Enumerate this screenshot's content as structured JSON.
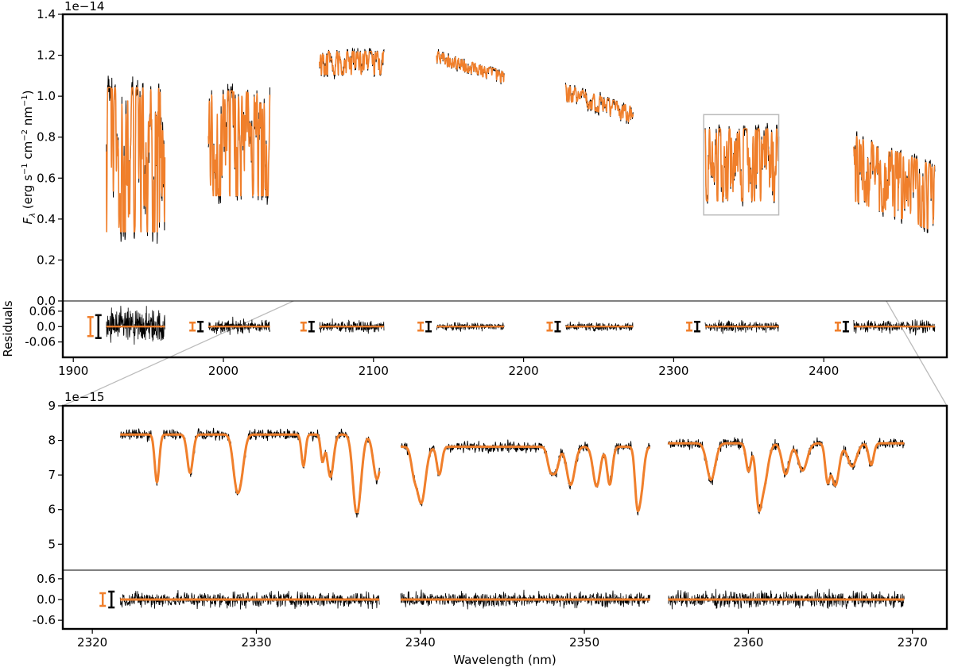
{
  "colors": {
    "model": "#f07f2b",
    "data": "#000000",
    "inset_box": "#bbbbbb",
    "background": "#ffffff"
  },
  "chart_data": [
    {
      "type": "line",
      "panel": "top-spectrum",
      "ylabel_parts": {
        "main": "F",
        "sub": "λ",
        "unit": " (erg s",
        "e1": "−1",
        "u2": " cm",
        "e2": "−2",
        "u3": " nm",
        "e3": "−1",
        "close": ")"
      },
      "offset_text": "1e−14",
      "xlim": [
        1893,
        2482
      ],
      "ylim": [
        0.0,
        1.4
      ],
      "yticks": [
        "0.0",
        "0.2",
        "0.4",
        "0.6",
        "0.8",
        "1.0",
        "1.2",
        "1.4"
      ],
      "grid": false,
      "series": [
        {
          "values": [
            {
              "x_range": [
                1922,
                1961
              ],
              "level": 0.8,
              "amplitude": 0.44
            },
            {
              "x_range": [
                1990,
                2031
              ],
              "level": 0.85,
              "amplitude": 0.32
            },
            {
              "x_range": [
                2064,
                2107
              ],
              "level": 1.18,
              "amplitude": 0.07
            },
            {
              "x_range": [
                2142,
                2187
              ],
              "level_start": 1.2,
              "level_end": 1.1,
              "amplitude": 0.035
            },
            {
              "x_range": [
                2228,
                2273
              ],
              "level_start": 1.03,
              "level_end": 0.92,
              "amplitude": 0.05
            },
            {
              "x_range": [
                2321,
                2370
              ],
              "level": 0.72,
              "amplitude": 0.22
            },
            {
              "x_range": [
                2420,
                2474
              ],
              "level_start": 0.7,
              "level_end": 0.55,
              "amplitude": 0.2
            }
          ]
        }
      ],
      "inset_indicator": {
        "x_range": [
          2320,
          2370
        ],
        "y_range": [
          0.42,
          0.91
        ]
      }
    },
    {
      "type": "line",
      "panel": "top-residuals",
      "ylabel": "Residuals",
      "ylim": [
        -0.12,
        0.1
      ],
      "yticks": [
        "0.06",
        "0.0",
        "-0.06"
      ],
      "xticks": [
        "1900",
        "2000",
        "2100",
        "2200",
        "2300",
        "2400"
      ],
      "x_tick_values": [
        1900,
        2000,
        2100,
        2200,
        2300,
        2400
      ],
      "series": [
        {
          "values": [
            {
              "x_range": [
                1922,
                1961
              ],
              "scatter": 0.12
            },
            {
              "x_range": [
                1990,
                2031
              ],
              "scatter": 0.045
            },
            {
              "x_range": [
                2064,
                2107
              ],
              "scatter": 0.04
            },
            {
              "x_range": [
                2142,
                2187
              ],
              "scatter": 0.025
            },
            {
              "x_range": [
                2228,
                2273
              ],
              "scatter": 0.03
            },
            {
              "x_range": [
                2321,
                2370
              ],
              "scatter": 0.04
            },
            {
              "x_range": [
                2420,
                2474
              ],
              "scatter": 0.045
            }
          ]
        }
      ]
    },
    {
      "type": "line",
      "panel": "zoom-spectrum",
      "offset_text": "1e−15",
      "xlim": [
        2318.2,
        2372.1
      ],
      "ylim": [
        4.25,
        9.0
      ],
      "yticks": [
        "5",
        "6",
        "7",
        "8",
        "9"
      ],
      "grid": false,
      "series": [
        {
          "values": [
            {
              "x_range": [
                2321.7,
                2337.5
              ],
              "level": 7.4,
              "amplitude": 1.4
            },
            {
              "x_range": [
                2338.8,
                2354.0
              ],
              "level": 7.1,
              "amplitude": 1.3
            },
            {
              "x_range": [
                2355.1,
                2369.5
              ],
              "level": 7.2,
              "amplitude": 1.3
            }
          ]
        }
      ]
    },
    {
      "type": "line",
      "panel": "zoom-residuals",
      "xlabel": "Wavelength (nm)",
      "ylim": [
        -0.85,
        0.85
      ],
      "yticks": [
        "0.6",
        "0.0",
        "-0.6"
      ],
      "xticks": [
        "2320",
        "2330",
        "2340",
        "2350",
        "2360",
        "2370"
      ],
      "x_tick_values": [
        2320,
        2330,
        2340,
        2350,
        2360,
        2370
      ],
      "series": [
        {
          "values": [
            {
              "x_range": [
                2321.7,
                2337.5
              ],
              "scatter": 0.5
            },
            {
              "x_range": [
                2338.8,
                2354.0
              ],
              "scatter": 0.45
            },
            {
              "x_range": [
                2355.1,
                2369.5
              ],
              "scatter": 0.5
            }
          ]
        }
      ]
    }
  ]
}
